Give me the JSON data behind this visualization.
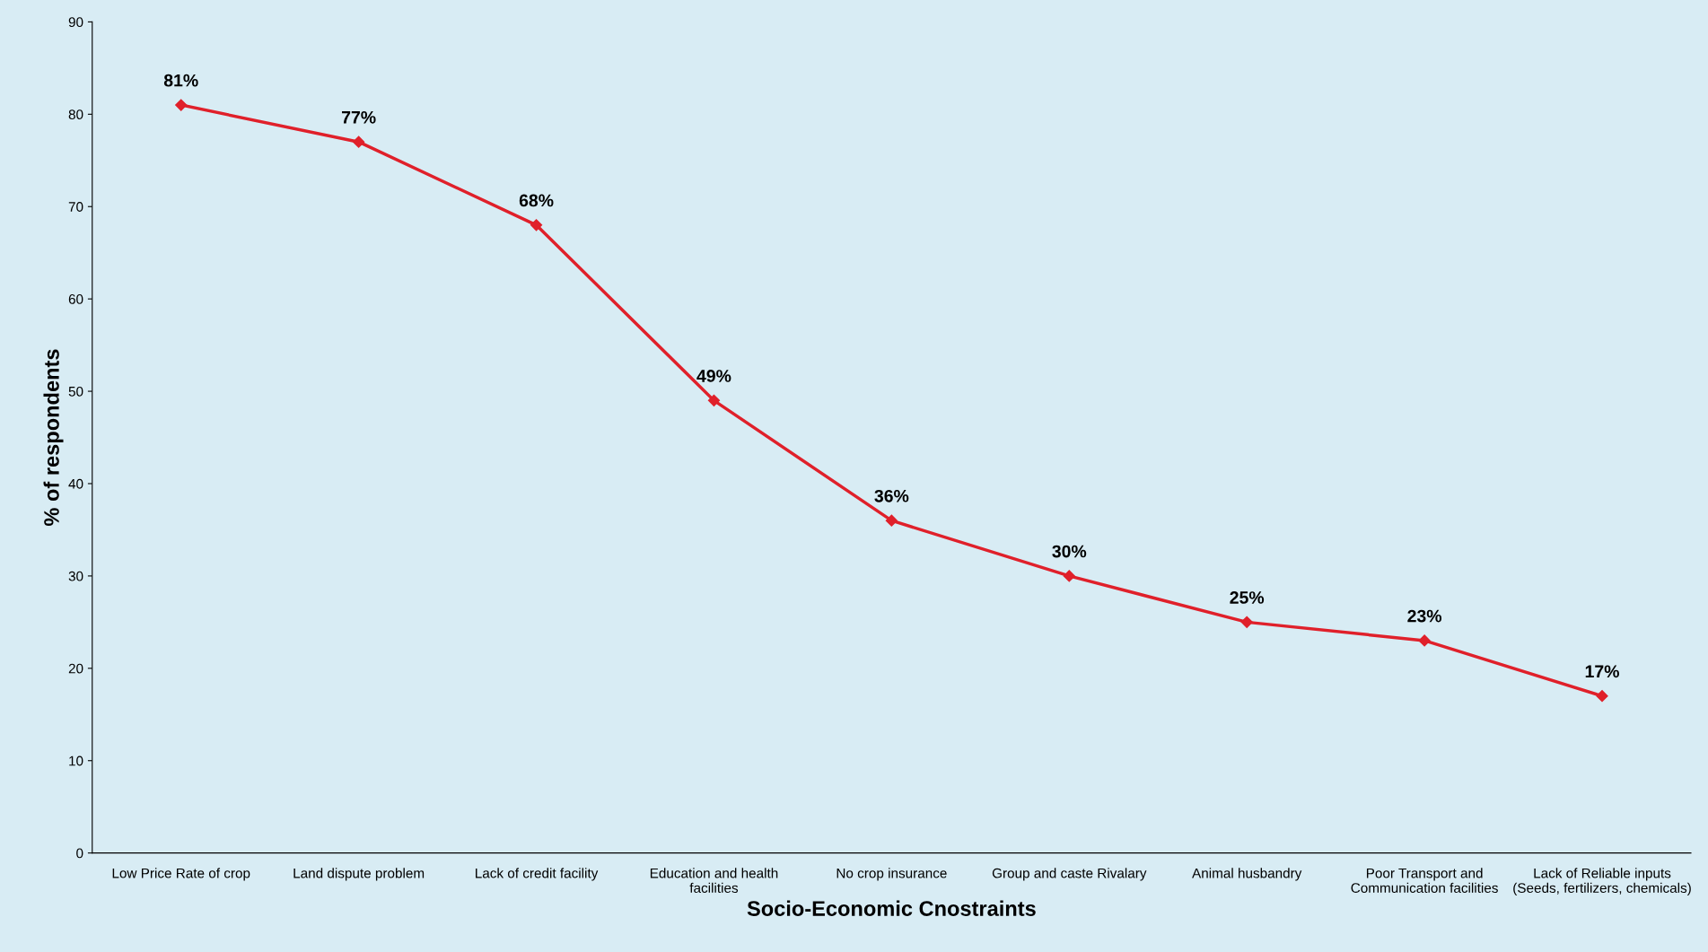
{
  "chart_data": {
    "type": "line",
    "xlabel": "Socio-Economic Cnostraints",
    "ylabel": "% of respondents",
    "categories": [
      "Low Price Rate of crop",
      "Land dispute problem",
      "Lack of credit facility",
      "Education and health\nfacilities",
      "No crop insurance",
      "Group and caste Rivalary",
      "Animal husbandry",
      "Poor Transport and\nCommunication facilities",
      "Lack of Reliable inputs\n(Seeds, fertilizers, chemicals)"
    ],
    "series": [
      {
        "color": "#e0202a",
        "values": [
          81,
          77,
          68,
          49,
          36,
          30,
          25,
          23,
          17
        ],
        "value_labels": [
          "81%",
          "77%",
          "68%",
          "49%",
          "36%",
          "30%",
          "25%",
          "23%",
          "17%"
        ]
      }
    ],
    "ylim": [
      0,
      90
    ],
    "yticks": [
      0,
      10,
      20,
      30,
      40,
      50,
      60,
      70,
      80,
      90
    ],
    "marker": "diamond",
    "grid": false,
    "legend": false
  }
}
